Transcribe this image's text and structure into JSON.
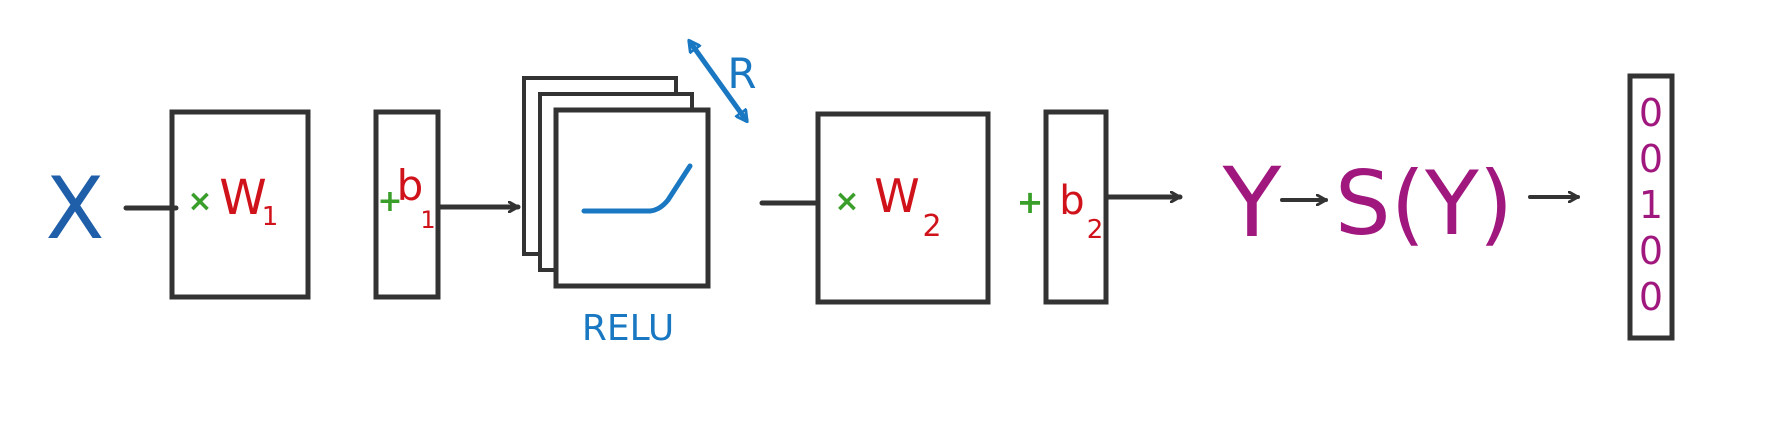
{
  "colors": {
    "stroke": "#333333",
    "input": "#1f5ea8",
    "weight": "#d0121b",
    "operator": "#3a9e2a",
    "relu": "#1a78c2",
    "output": "#a0177e",
    "background": "#ffffff"
  },
  "diagram": {
    "input_label": "X",
    "layer1": {
      "op": "×",
      "weight": "W",
      "weight_sub": "1",
      "bias_op": "+",
      "bias": "b",
      "bias_sub": "1"
    },
    "relu": {
      "label": "RELU",
      "dim_label": "R"
    },
    "layer2": {
      "op": "×",
      "weight": "W",
      "weight_sub": "2",
      "bias_op": "+",
      "bias": "b",
      "bias_sub": "2"
    },
    "logits_label": "Y",
    "softmax_label": "S(Y)",
    "onehot": [
      "0",
      "0",
      "1",
      "0",
      "0"
    ]
  }
}
